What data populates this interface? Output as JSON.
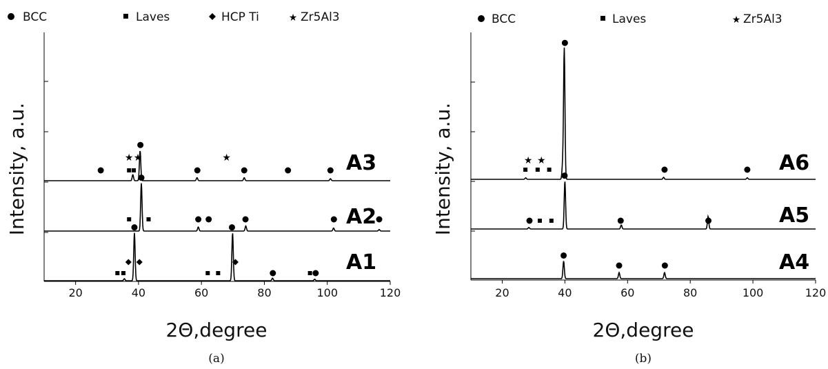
{
  "chart_data": [
    {
      "type": "line",
      "panel_caption": "(a)",
      "xlabel": "2Θ,degree",
      "ylabel": "Intensity, a.u.",
      "xlim": [
        10,
        120
      ],
      "xticks": [
        20,
        40,
        60,
        80,
        100,
        120
      ],
      "legend": [
        {
          "symbol": "circle",
          "label": "BCC"
        },
        {
          "symbol": "square",
          "label": "Laves"
        },
        {
          "symbol": "diamond",
          "label": "HCP Ti"
        },
        {
          "symbol": "star",
          "label": "Zr5Al3"
        }
      ],
      "series": [
        {
          "name": "A1",
          "peaks": [
            [
              38.7,
              0.95
            ],
            [
              69.9,
              0.95
            ],
            [
              82.6,
              0.05
            ],
            [
              35.5,
              0.04
            ],
            [
              96.0,
              0.03
            ]
          ],
          "markers": [
            {
              "x": 38.7,
              "symbol": "circle"
            },
            {
              "x": 36.8,
              "symbol": "diamond"
            },
            {
              "x": 40.3,
              "symbol": "diamond"
            },
            {
              "x": 33.3,
              "symbol": "square"
            },
            {
              "x": 35.2,
              "symbol": "square"
            },
            {
              "x": 69.7,
              "symbol": "circle"
            },
            {
              "x": 70.8,
              "symbol": "diamond"
            },
            {
              "x": 62.0,
              "symbol": "square"
            },
            {
              "x": 65.3,
              "symbol": "square"
            },
            {
              "x": 82.7,
              "symbol": "circle"
            },
            {
              "x": 94.5,
              "symbol": "square"
            },
            {
              "x": 96.3,
              "symbol": "circle"
            }
          ]
        },
        {
          "name": "A2",
          "peaks": [
            [
              40.9,
              0.95
            ],
            [
              59.0,
              0.08
            ],
            [
              74.1,
              0.1
            ],
            [
              102.0,
              0.06
            ],
            [
              116.5,
              0.03
            ]
          ],
          "markers": [
            {
              "x": 37.0,
              "symbol": "square"
            },
            {
              "x": 40.9,
              "symbol": "circle"
            },
            {
              "x": 43.2,
              "symbol": "square"
            },
            {
              "x": 59.0,
              "symbol": "circle"
            },
            {
              "x": 62.3,
              "symbol": "circle"
            },
            {
              "x": 74.0,
              "symbol": "circle"
            },
            {
              "x": 102.1,
              "symbol": "circle"
            },
            {
              "x": 116.5,
              "symbol": "circle"
            }
          ]
        },
        {
          "name": "A3",
          "peaks": [
            [
              40.5,
              0.6
            ],
            [
              38.2,
              0.12
            ],
            [
              58.6,
              0.06
            ],
            [
              73.6,
              0.06
            ],
            [
              101.0,
              0.04
            ]
          ],
          "markers": [
            {
              "x": 28.0,
              "symbol": "circle"
            },
            {
              "x": 37.0,
              "symbol": "star"
            },
            {
              "x": 39.8,
              "symbol": "star"
            },
            {
              "x": 37.0,
              "symbol": "square"
            },
            {
              "x": 38.5,
              "symbol": "square"
            },
            {
              "x": 40.6,
              "symbol": "circle"
            },
            {
              "x": 58.7,
              "symbol": "circle"
            },
            {
              "x": 68.0,
              "symbol": "star"
            },
            {
              "x": 73.6,
              "symbol": "circle"
            },
            {
              "x": 87.5,
              "symbol": "circle"
            },
            {
              "x": 101.0,
              "symbol": "circle"
            }
          ]
        }
      ]
    },
    {
      "type": "line",
      "panel_caption": "(b)",
      "xlabel": "2Θ,degree",
      "ylabel": "Intensity, a.u.",
      "xlim": [
        10,
        120
      ],
      "xticks": [
        20,
        40,
        60,
        80,
        100,
        120
      ],
      "legend": [
        {
          "symbol": "circle",
          "label": "BCC"
        },
        {
          "symbol": "square",
          "label": "Laves"
        },
        {
          "symbol": "star",
          "label": "Zr5Al3"
        }
      ],
      "series": [
        {
          "name": "A4",
          "peaks": [
            [
              39.6,
              0.35
            ],
            [
              57.3,
              0.12
            ],
            [
              71.8,
              0.12
            ]
          ],
          "markers": [
            {
              "x": 39.6,
              "symbol": "circle"
            },
            {
              "x": 57.3,
              "symbol": "circle"
            },
            {
              "x": 71.9,
              "symbol": "circle"
            }
          ]
        },
        {
          "name": "A5",
          "peaks": [
            [
              40.0,
              0.95
            ],
            [
              28.5,
              0.03
            ],
            [
              58.0,
              0.08
            ],
            [
              85.7,
              0.25
            ]
          ],
          "markers": [
            {
              "x": 28.7,
              "symbol": "circle"
            },
            {
              "x": 32.0,
              "symbol": "square"
            },
            {
              "x": 35.7,
              "symbol": "square"
            },
            {
              "x": 39.9,
              "symbol": "circle"
            },
            {
              "x": 57.8,
              "symbol": "circle"
            },
            {
              "x": 85.8,
              "symbol": "circle"
            }
          ]
        },
        {
          "name": "A6",
          "peaks": [
            [
              39.8,
              2.6
            ],
            [
              39.3,
              0.3
            ],
            [
              27.5,
              0.03
            ],
            [
              71.5,
              0.04
            ],
            [
              98.2,
              0.03
            ]
          ],
          "markers": [
            {
              "x": 27.4,
              "symbol": "square"
            },
            {
              "x": 28.3,
              "symbol": "star"
            },
            {
              "x": 31.3,
              "symbol": "square"
            },
            {
              "x": 32.5,
              "symbol": "star"
            },
            {
              "x": 35.0,
              "symbol": "square"
            },
            {
              "x": 40.0,
              "symbol": "circle"
            },
            {
              "x": 71.8,
              "symbol": "circle"
            },
            {
              "x": 98.2,
              "symbol": "circle"
            }
          ]
        }
      ]
    }
  ]
}
